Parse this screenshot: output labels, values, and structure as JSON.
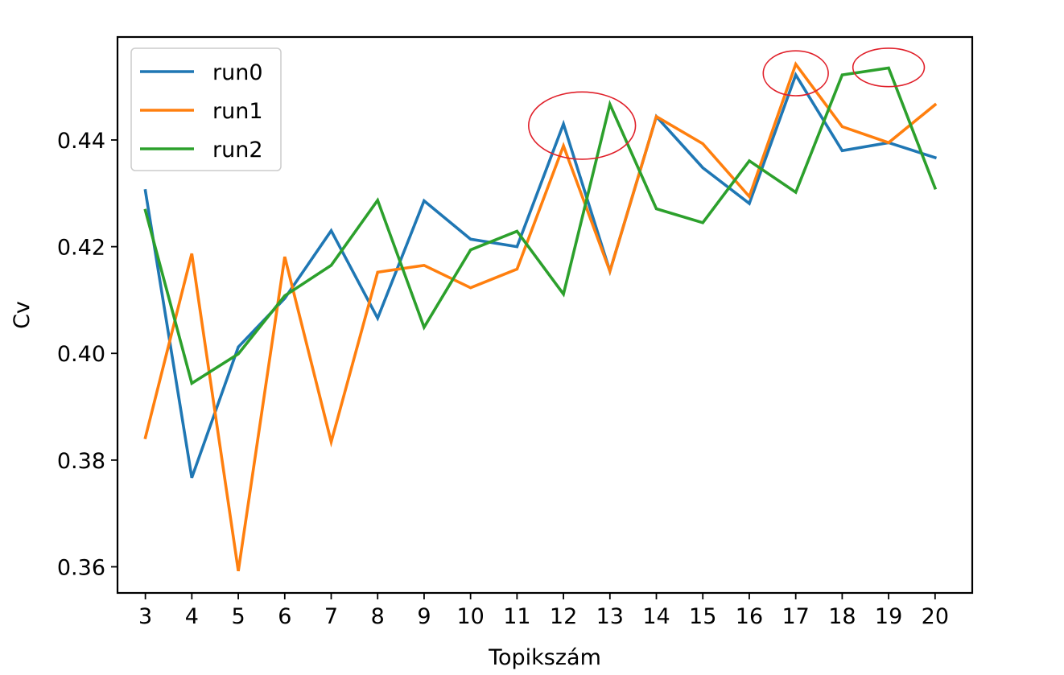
{
  "chart_data": {
    "type": "line",
    "title": "",
    "xlabel": "Topikszám",
    "ylabel": "Cv",
    "x": [
      3,
      4,
      5,
      6,
      7,
      8,
      9,
      10,
      11,
      12,
      13,
      14,
      15,
      16,
      17,
      18,
      19,
      20
    ],
    "x_tick_labels": [
      "3",
      "4",
      "5",
      "6",
      "7",
      "8",
      "9",
      "10",
      "11",
      "12",
      "13",
      "14",
      "15",
      "16",
      "17",
      "18",
      "19",
      "20"
    ],
    "xlim": [
      2.4,
      20.8
    ],
    "ylim": [
      0.3551,
      0.4593
    ],
    "y_ticks": [
      0.36,
      0.38,
      0.4,
      0.42,
      0.44
    ],
    "y_tick_labels": [
      "0.36",
      "0.38",
      "0.40",
      "0.42",
      "0.44"
    ],
    "grid": false,
    "legend_position": "top-left",
    "series": [
      {
        "name": "run0",
        "color": "#1f77b4",
        "values": [
          0.4305,
          0.3767,
          0.4012,
          0.4103,
          0.423,
          0.4066,
          0.4286,
          0.4214,
          0.42,
          0.443,
          0.4154,
          0.4444,
          0.4348,
          0.4281,
          0.4522,
          0.438,
          0.4395,
          0.4367
        ]
      },
      {
        "name": "run1",
        "color": "#ff7f0e",
        "values": [
          0.3842,
          0.4187,
          0.3592,
          0.4181,
          0.3834,
          0.4152,
          0.4165,
          0.4123,
          0.4158,
          0.4389,
          0.4154,
          0.4444,
          0.4393,
          0.4294,
          0.4542,
          0.4425,
          0.4395,
          0.4466
        ]
      },
      {
        "name": "run2",
        "color": "#2ca02c",
        "values": [
          0.4268,
          0.3944,
          0.3999,
          0.4108,
          0.4165,
          0.4287,
          0.4049,
          0.4194,
          0.4229,
          0.4111,
          0.4467,
          0.4271,
          0.4245,
          0.4361,
          0.4302,
          0.4522,
          0.4535,
          0.431
        ]
      }
    ],
    "annotations": [
      {
        "type": "ellipse",
        "color": "#e0202a",
        "cx": 12.4,
        "cy": 0.4427,
        "rx": 1.15,
        "ry": 0.0063
      },
      {
        "type": "ellipse",
        "color": "#e0202a",
        "cx": 17.0,
        "cy": 0.4525,
        "rx": 0.7,
        "ry": 0.0042
      },
      {
        "type": "ellipse",
        "color": "#e0202a",
        "cx": 19.0,
        "cy": 0.4536,
        "rx": 0.77,
        "ry": 0.0036
      }
    ]
  }
}
